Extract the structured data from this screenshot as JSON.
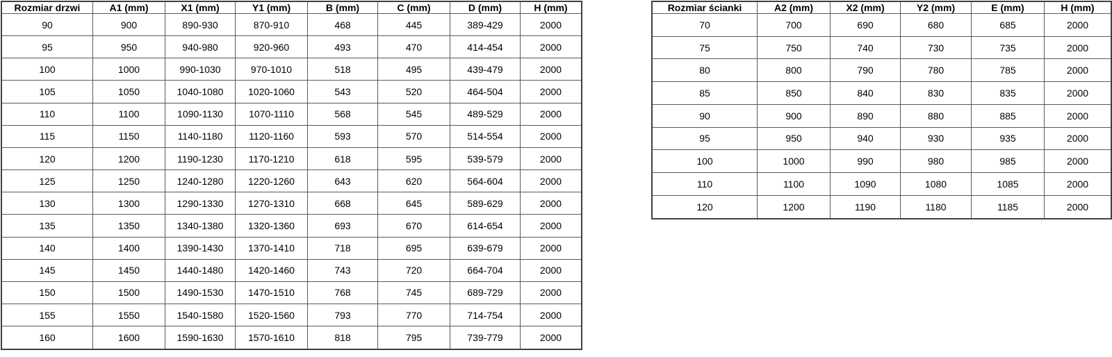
{
  "colors": {
    "background": "#ffffff",
    "border_inner": "#595959",
    "border_outer": "#404040",
    "text": "#000000"
  },
  "tables": [
    {
      "name": "door-size-table",
      "headers": [
        "Rozmiar drzwi",
        "A1 (mm)",
        "X1 (mm)",
        "Y1 (mm)",
        "B (mm)",
        "C (mm)",
        "D (mm)",
        "H (mm)"
      ],
      "rows": [
        [
          "90",
          "900",
          "890-930",
          "870-910",
          "468",
          "445",
          "389-429",
          "2000"
        ],
        [
          "95",
          "950",
          "940-980",
          "920-960",
          "493",
          "470",
          "414-454",
          "2000"
        ],
        [
          "100",
          "1000",
          "990-1030",
          "970-1010",
          "518",
          "495",
          "439-479",
          "2000"
        ],
        [
          "105",
          "1050",
          "1040-1080",
          "1020-1060",
          "543",
          "520",
          "464-504",
          "2000"
        ],
        [
          "110",
          "1100",
          "1090-1130",
          "1070-1110",
          "568",
          "545",
          "489-529",
          "2000"
        ],
        [
          "115",
          "1150",
          "1140-1180",
          "1120-1160",
          "593",
          "570",
          "514-554",
          "2000"
        ],
        [
          "120",
          "1200",
          "1190-1230",
          "1170-1210",
          "618",
          "595",
          "539-579",
          "2000"
        ],
        [
          "125",
          "1250",
          "1240-1280",
          "1220-1260",
          "643",
          "620",
          "564-604",
          "2000"
        ],
        [
          "130",
          "1300",
          "1290-1330",
          "1270-1310",
          "668",
          "645",
          "589-629",
          "2000"
        ],
        [
          "135",
          "1350",
          "1340-1380",
          "1320-1360",
          "693",
          "670",
          "614-654",
          "2000"
        ],
        [
          "140",
          "1400",
          "1390-1430",
          "1370-1410",
          "718",
          "695",
          "639-679",
          "2000"
        ],
        [
          "145",
          "1450",
          "1440-1480",
          "1420-1460",
          "743",
          "720",
          "664-704",
          "2000"
        ],
        [
          "150",
          "1500",
          "1490-1530",
          "1470-1510",
          "768",
          "745",
          "689-729",
          "2000"
        ],
        [
          "155",
          "1550",
          "1540-1580",
          "1520-1560",
          "793",
          "770",
          "714-754",
          "2000"
        ],
        [
          "160",
          "1600",
          "1590-1630",
          "1570-1610",
          "818",
          "795",
          "739-779",
          "2000"
        ]
      ]
    },
    {
      "name": "wall-size-table",
      "headers": [
        "Rozmiar ścianki",
        "A2 (mm)",
        "X2 (mm)",
        "Y2 (mm)",
        "E (mm)",
        "H (mm)"
      ],
      "rows": [
        [
          "70",
          "700",
          "690",
          "680",
          "685",
          "2000"
        ],
        [
          "75",
          "750",
          "740",
          "730",
          "735",
          "2000"
        ],
        [
          "80",
          "800",
          "790",
          "780",
          "785",
          "2000"
        ],
        [
          "85",
          "850",
          "840",
          "830",
          "835",
          "2000"
        ],
        [
          "90",
          "900",
          "890",
          "880",
          "885",
          "2000"
        ],
        [
          "95",
          "950",
          "940",
          "930",
          "935",
          "2000"
        ],
        [
          "100",
          "1000",
          "990",
          "980",
          "985",
          "2000"
        ],
        [
          "110",
          "1100",
          "1090",
          "1080",
          "1085",
          "2000"
        ],
        [
          "120",
          "1200",
          "1190",
          "1180",
          "1185",
          "2000"
        ]
      ]
    }
  ]
}
